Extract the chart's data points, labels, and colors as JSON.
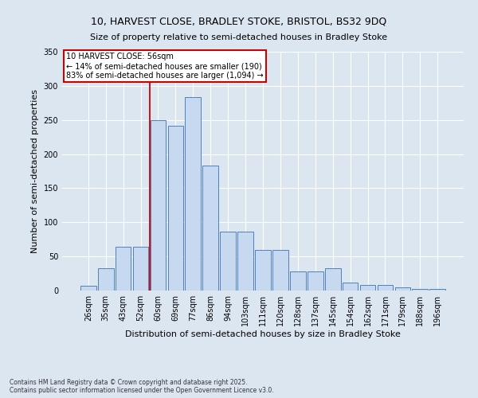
{
  "title1": "10, HARVEST CLOSE, BRADLEY STOKE, BRISTOL, BS32 9DQ",
  "title2": "Size of property relative to semi-detached houses in Bradley Stoke",
  "xlabel": "Distribution of semi-detached houses by size in Bradley Stoke",
  "ylabel": "Number of semi-detached properties",
  "categories": [
    "26sqm",
    "35sqm",
    "43sqm",
    "52sqm",
    "60sqm",
    "69sqm",
    "77sqm",
    "86sqm",
    "94sqm",
    "103sqm",
    "111sqm",
    "120sqm",
    "128sqm",
    "137sqm",
    "145sqm",
    "154sqm",
    "162sqm",
    "171sqm",
    "179sqm",
    "188sqm",
    "196sqm"
  ],
  "values": [
    7,
    33,
    64,
    64,
    250,
    242,
    283,
    183,
    86,
    86,
    59,
    59,
    28,
    28,
    33,
    12,
    8,
    8,
    5,
    2,
    2
  ],
  "bar_color": "#c6d9f1",
  "bar_edge_color": "#4f81bd",
  "background_color": "#dce6f1",
  "grid_color": "#ffffff",
  "annotation_box_text": "10 HARVEST CLOSE: 56sqm\n← 14% of semi-detached houses are smaller (190)\n83% of semi-detached houses are larger (1,094) →",
  "annotation_box_color": "#cc0000",
  "vline_color": "#cc0000",
  "footnote": "Contains HM Land Registry data © Crown copyright and database right 2025.\nContains public sector information licensed under the Open Government Licence v3.0.",
  "ylim": [
    0,
    350
  ],
  "yticks": [
    0,
    50,
    100,
    150,
    200,
    250,
    300,
    350
  ]
}
